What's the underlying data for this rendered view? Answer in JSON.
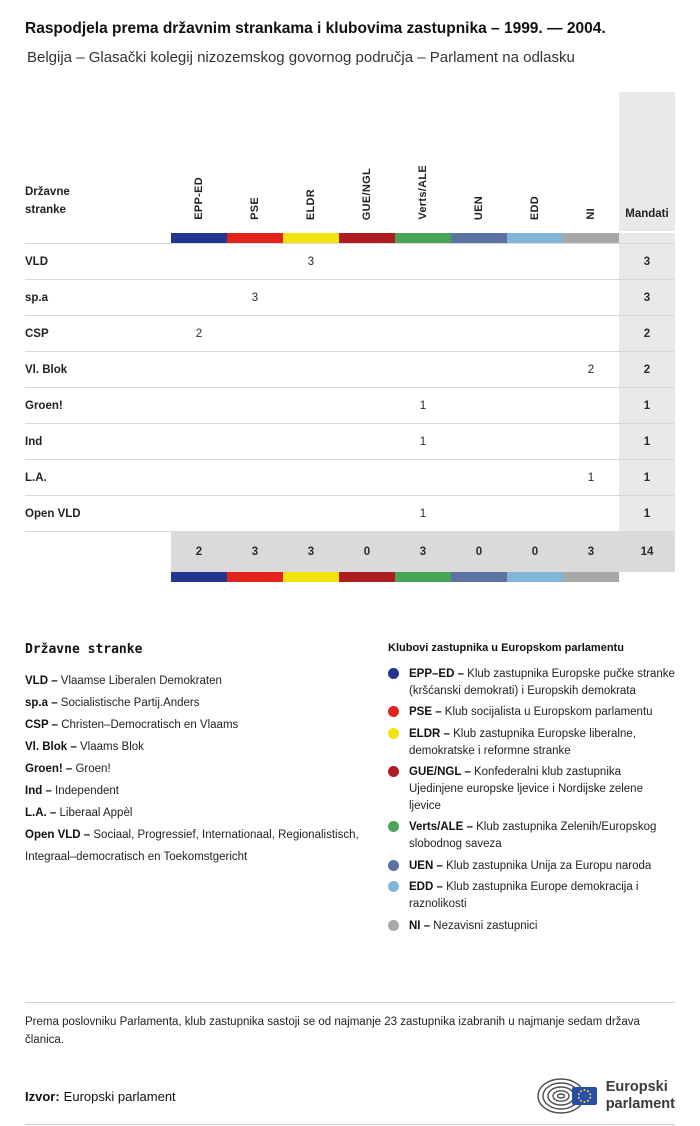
{
  "header": {
    "title": "Raspodjela prema državnim strankama i klubovima zastupnika – 1999. — 2004.",
    "subtitle": "Belgija – Glasački kolegij nizozemskog govornog područja – Parlament na odlasku"
  },
  "chart_data": {
    "type": "table",
    "row_header": "Državne stranke",
    "mandates_label": "Mandati",
    "groups": [
      {
        "id": "EPP-ED",
        "color": "#23368f"
      },
      {
        "id": "PSE",
        "color": "#e2231a"
      },
      {
        "id": "ELDR",
        "color": "#f0e40c"
      },
      {
        "id": "GUE/NGL",
        "color": "#ac1c20"
      },
      {
        "id": "Verts/ALE",
        "color": "#4aa457"
      },
      {
        "id": "UEN",
        "color": "#5b73a2"
      },
      {
        "id": "EDD",
        "color": "#82b6d9"
      },
      {
        "id": "NI",
        "color": "#a7a9a8"
      }
    ],
    "rows": [
      {
        "party": "VLD",
        "values": [
          "",
          "",
          "3",
          "",
          "",
          "",
          "",
          ""
        ],
        "mandates": "3"
      },
      {
        "party": "sp.a",
        "values": [
          "",
          "3",
          "",
          "",
          "",
          "",
          "",
          ""
        ],
        "mandates": "3"
      },
      {
        "party": "CSP",
        "values": [
          "2",
          "",
          "",
          "",
          "",
          "",
          "",
          ""
        ],
        "mandates": "2"
      },
      {
        "party": "Vl. Blok",
        "values": [
          "",
          "",
          "",
          "",
          "",
          "",
          "",
          "2"
        ],
        "mandates": "2"
      },
      {
        "party": "Groen!",
        "values": [
          "",
          "",
          "",
          "",
          "1",
          "",
          "",
          ""
        ],
        "mandates": "1"
      },
      {
        "party": "Ind",
        "values": [
          "",
          "",
          "",
          "",
          "1",
          "",
          "",
          ""
        ],
        "mandates": "1"
      },
      {
        "party": "L.A.",
        "values": [
          "",
          "",
          "",
          "",
          "",
          "",
          "",
          "1"
        ],
        "mandates": "1"
      },
      {
        "party": "Open VLD",
        "values": [
          "",
          "",
          "",
          "",
          "1",
          "",
          "",
          ""
        ],
        "mandates": "1"
      }
    ],
    "totals": {
      "values": [
        "2",
        "3",
        "3",
        "0",
        "3",
        "0",
        "0",
        "3"
      ],
      "mandates": "14"
    }
  },
  "party_legend": {
    "title": "Državne stranke",
    "separator": "–",
    "items": [
      {
        "abbr": "VLD",
        "name": "Vlaamse Liberalen Demokraten"
      },
      {
        "abbr": "sp.a",
        "name": "Socialistische Partij.Anders"
      },
      {
        "abbr": "CSP",
        "name": "Christen–Democratisch en Vlaams"
      },
      {
        "abbr": "Vl. Blok",
        "name": "Vlaams Blok"
      },
      {
        "abbr": "Groen!",
        "name": "Groen!"
      },
      {
        "abbr": "Ind",
        "name": "Independent"
      },
      {
        "abbr": "L.A.",
        "name": "Liberaal Appèl"
      },
      {
        "abbr": "Open VLD",
        "name": "Sociaal, Progressief, Internationaal, Regionalistisch, Integraal–democratisch en Toekomstgericht"
      }
    ]
  },
  "group_legend": {
    "title": "Klubovi zastupnika u Europskom parlamentu",
    "separator": "–",
    "items": [
      {
        "abbr": "EPP–ED",
        "desc": "Klub zastupnika Europske pučke stranke (kršćanski demokrati) i Europskih demokrata",
        "color": "#23368f"
      },
      {
        "abbr": "PSE",
        "desc": "Klub socijalista u Europskom parlamentu",
        "color": "#e2231a"
      },
      {
        "abbr": "ELDR",
        "desc": "Klub zastupnika Europske liberalne, demokratske i reformne stranke",
        "color": "#f0e40c"
      },
      {
        "abbr": "GUE/NGL",
        "desc": "Konfederalni klub zastupnika Ujedinjene europske ljevice i Nordijske zelene ljevice",
        "color": "#ac1c20"
      },
      {
        "abbr": "Verts/ALE",
        "desc": "Klub zastupnika Zelenih/Europskog slobodnog saveza",
        "color": "#4aa457"
      },
      {
        "abbr": "UEN",
        "desc": "Klub zastupnika Unija za Europu naroda",
        "color": "#5b73a2"
      },
      {
        "abbr": "EDD",
        "desc": "Klub zastupnika Europe demokracija i raznolikosti",
        "color": "#82b6d9"
      },
      {
        "abbr": "NI",
        "desc": "Nezavisni zastupnici",
        "color": "#a7a9a8"
      }
    ]
  },
  "footnote": "Prema poslovniku Parlamenta, klub zastupnika sastoji se od najmanje 23 zastupnika izabranih u najmanje sedam država članica.",
  "source": {
    "label": "Izvor:",
    "value": "Europski parlament"
  },
  "logo": {
    "line1": "Europski",
    "line2": "parlament"
  }
}
